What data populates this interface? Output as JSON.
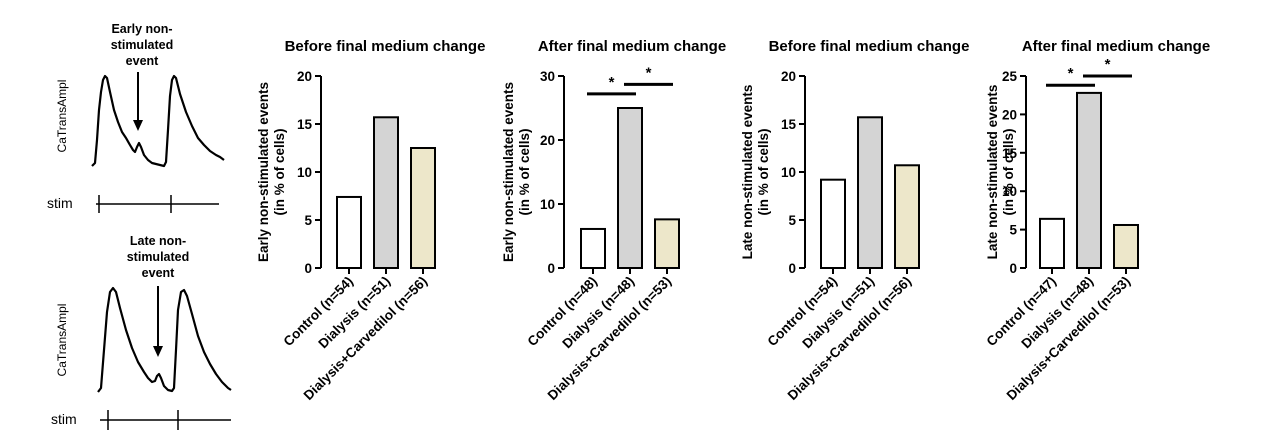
{
  "colors": {
    "control": "#ffffff",
    "dialysis": "#d4d4d4",
    "carvedilol": "#ede7ca",
    "stroke": "#000000"
  },
  "traces": {
    "early": {
      "title_lines": [
        "Early non-",
        "stimulated",
        "event"
      ],
      "ylabel": "CaTransAmpl",
      "stim_label": "stim"
    },
    "late": {
      "title_lines": [
        "Late non-",
        "stimulated",
        "event"
      ],
      "ylabel": "CaTransAmpl",
      "stim_label": "stim"
    }
  },
  "chart_data": [
    {
      "type": "bar",
      "title": "Before final medium change",
      "ylabel_lines": [
        "Early non-stimulated events",
        "(in % of cells)"
      ],
      "categories": [
        "Control (n=54)",
        "Dialysis (n=51)",
        "Dialysis+Carvedilol (n=56)"
      ],
      "values": [
        7.4,
        15.7,
        12.5
      ],
      "colors": [
        "#ffffff",
        "#d4d4d4",
        "#ede7ca"
      ],
      "ylim": [
        0,
        20
      ],
      "yticks": [
        0,
        5,
        10,
        15,
        20
      ],
      "significance": []
    },
    {
      "type": "bar",
      "title": "After final medium change",
      "ylabel_lines": [
        "Early non-stimulated events",
        "(in % of cells)"
      ],
      "categories": [
        "Control (n=48)",
        "Dialysis (n=48)",
        "Dialysis+Carvedilol (n=53)"
      ],
      "values": [
        6.1,
        25.0,
        7.6
      ],
      "colors": [
        "#ffffff",
        "#d4d4d4",
        "#ede7ca"
      ],
      "ylim": [
        0,
        30
      ],
      "yticks": [
        0,
        10,
        20,
        30
      ],
      "significance": [
        {
          "from": 0,
          "to": 1,
          "level": 27.2,
          "label": "*"
        },
        {
          "from": 1,
          "to": 2,
          "level": 28.7,
          "label": "*"
        }
      ]
    },
    {
      "type": "bar",
      "title": "Before final medium change",
      "ylabel_lines": [
        "Late non-stimulated events",
        "(in % of cells)"
      ],
      "categories": [
        "Control (n=54)",
        "Dialysis (n=51)",
        "Dialysis+Carvedilol (n=56)"
      ],
      "values": [
        9.2,
        15.7,
        10.7
      ],
      "colors": [
        "#ffffff",
        "#d4d4d4",
        "#ede7ca"
      ],
      "ylim": [
        0,
        20
      ],
      "yticks": [
        0,
        5,
        10,
        15,
        20
      ],
      "significance": []
    },
    {
      "type": "bar",
      "title": "After final medium change",
      "ylabel_lines": [
        "Late non-stimulated events",
        "(in % of cells)"
      ],
      "categories": [
        "Control (n=47)",
        "Dialysis (n=48)",
        "Dialysis+Carvedilol (n=53)"
      ],
      "values": [
        6.4,
        22.8,
        5.6
      ],
      "colors": [
        "#ffffff",
        "#d4d4d4",
        "#ede7ca"
      ],
      "ylim": [
        0,
        25
      ],
      "yticks": [
        0,
        5,
        10,
        15,
        20,
        25
      ],
      "significance": [
        {
          "from": 0,
          "to": 1,
          "level": 23.8,
          "label": "*"
        },
        {
          "from": 1,
          "to": 2,
          "level": 25.0,
          "label": "*"
        }
      ]
    }
  ]
}
